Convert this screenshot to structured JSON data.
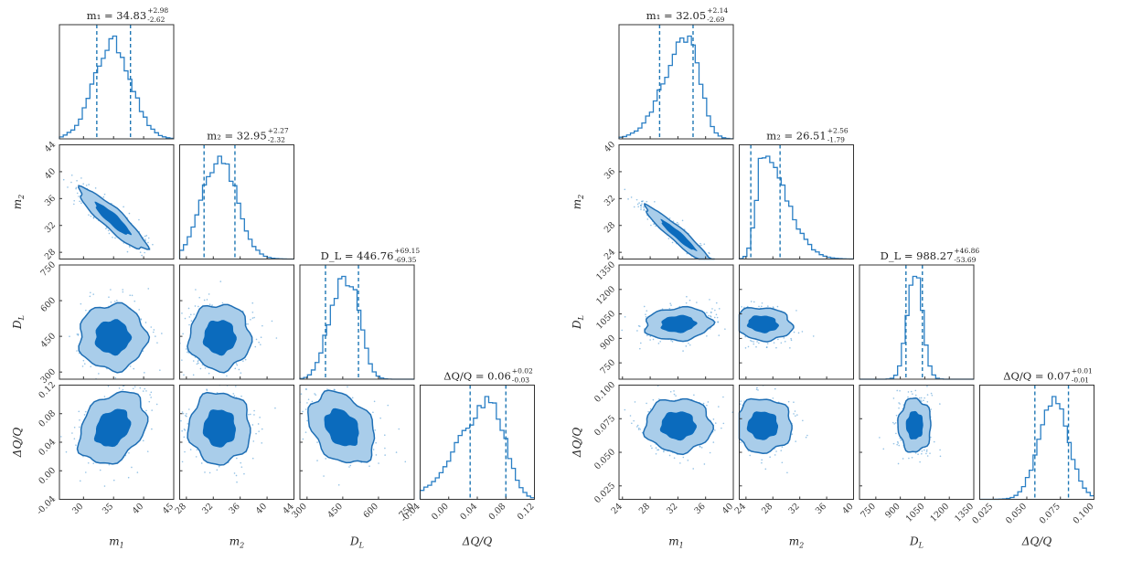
{
  "chart_data": [
    {
      "type": "corner",
      "name": "left",
      "parameters": [
        {
          "key": "m1",
          "label": "m_1",
          "title_value": "34.83",
          "plus": "+2.98",
          "minus": "-2.62",
          "range": [
            26,
            45
          ],
          "ticks": [
            30,
            35,
            40,
            45
          ],
          "median": 34.83,
          "q_low": 32.21,
          "q_high": 37.81,
          "hist_shape": "symmetric"
        },
        {
          "key": "m2",
          "label": "m_2",
          "title_value": "32.95",
          "plus": "+2.27",
          "minus": "-2.32",
          "range": [
            27,
            44
          ],
          "ticks": [
            28,
            32,
            36,
            40,
            44
          ],
          "median": 32.95,
          "q_low": 30.63,
          "q_high": 35.22,
          "hist_shape": "symmetric"
        },
        {
          "key": "DL",
          "label": "D_L",
          "title_value": "446.76",
          "plus": "+69.15",
          "minus": "-69.35",
          "range": [
            270,
            750
          ],
          "ticks": [
            300,
            450,
            600,
            750
          ],
          "median": 446.76,
          "q_low": 377.41,
          "q_high": 515.91,
          "hist_shape": "bimodal"
        },
        {
          "key": "dQ",
          "label": "ΔQ/Q",
          "title_value": "0.06",
          "plus": "+0.02",
          "minus": "-0.03",
          "range": [
            -0.04,
            0.12
          ],
          "ticks": [
            -0.04,
            0.0,
            0.04,
            0.08,
            0.12
          ],
          "median": 0.06,
          "q_low": 0.03,
          "q_high": 0.08,
          "hist_shape": "left-skewed"
        }
      ],
      "ytick_labels": {
        "m2": [
          "28",
          "32",
          "36",
          "40",
          "44"
        ],
        "DL": [
          "300",
          "450",
          "600",
          "750"
        ],
        "dQ": [
          "-0.04",
          "0.00",
          "0.04",
          "0.08",
          "0.12"
        ]
      },
      "xtick_labels": {
        "m1": [
          "30",
          "35",
          "40",
          "45"
        ],
        "m2": [
          "28",
          "32",
          "36",
          "40",
          "44"
        ],
        "DL": [
          "300",
          "450",
          "600",
          "750"
        ],
        "dQ": [
          "-0.04",
          "0.00",
          "0.04",
          "0.08",
          "0.12"
        ]
      },
      "correlations": {
        "m1_m2": -0.9,
        "m1_DL": 0.0,
        "m2_DL": 0.0,
        "m1_dQ": 0.3,
        "m2_dQ": 0.0,
        "DL_dQ": -0.3
      }
    },
    {
      "type": "corner",
      "name": "right",
      "parameters": [
        {
          "key": "m1",
          "label": "m_1",
          "title_value": "32.05",
          "plus": "+2.14",
          "minus": "-2.69",
          "range": [
            23.5,
            40
          ],
          "ticks": [
            24,
            28,
            32,
            36,
            40
          ],
          "median": 32.05,
          "q_low": 29.36,
          "q_high": 34.19,
          "hist_shape": "right-peaked"
        },
        {
          "key": "m2",
          "label": "m_2",
          "title_value": "26.51",
          "plus": "+2.56",
          "minus": "-1.79",
          "range": [
            23,
            40
          ],
          "ticks": [
            24,
            28,
            32,
            36,
            40
          ],
          "median": 26.51,
          "q_low": 24.72,
          "q_high": 29.07,
          "hist_shape": "right-skewed"
        },
        {
          "key": "DL",
          "label": "D_L",
          "title_value": "988.27",
          "plus": "+46.86",
          "minus": "-53.69",
          "range": [
            650,
            1350
          ],
          "ticks": [
            750,
            900,
            1050,
            1200,
            1350
          ],
          "median": 988.27,
          "q_low": 934.58,
          "q_high": 1035.13,
          "hist_shape": "narrow"
        },
        {
          "key": "dQ",
          "label": "ΔQ/Q",
          "title_value": "0.07",
          "plus": "+0.01",
          "minus": "-0.01",
          "range": [
            0.015,
            0.1
          ],
          "ticks": [
            0.025,
            0.05,
            0.075,
            0.1
          ],
          "median": 0.07,
          "q_low": 0.056,
          "q_high": 0.081,
          "hist_shape": "symmetric"
        }
      ],
      "ytick_labels": {
        "m2": [
          "24",
          "28",
          "32",
          "36",
          "40"
        ],
        "DL": [
          "750",
          "900",
          "1050",
          "1200",
          "1350"
        ],
        "dQ": [
          "0.025",
          "0.050",
          "0.075",
          "0.100"
        ]
      },
      "xtick_labels": {
        "m1": [
          "24",
          "28",
          "32",
          "36",
          "40"
        ],
        "m2": [
          "24",
          "28",
          "32",
          "36",
          "40"
        ],
        "DL": [
          "750",
          "900",
          "1050",
          "1200",
          "1350"
        ],
        "dQ": [
          "0.025",
          "0.050",
          "0.075",
          "0.100"
        ]
      },
      "correlations": {
        "m1_m2": -0.95,
        "m1_DL": 0.1,
        "m2_DL": -0.1,
        "m1_dQ": 0.0,
        "m2_dQ": 0.0,
        "DL_dQ": 0.0
      }
    }
  ],
  "titles": {
    "left": {
      "m1": "m₁ = 34.83",
      "m2": "m₂ = 32.95",
      "DL": "D_L = 446.76",
      "dQ": "ΔQ/Q = 0.06"
    },
    "right": {
      "m1": "m₁ = 32.05",
      "m2": "m₂ = 26.51",
      "DL": "D_L = 988.27",
      "dQ": "ΔQ/Q = 0.07"
    }
  },
  "axis_labels": {
    "m1": "m",
    "m1_sub": "1",
    "m2": "m",
    "m2_sub": "2",
    "DL": "D",
    "DL_sub": "L",
    "dQ": "ΔQ/Q"
  },
  "colors": {
    "dark": "#0b6bbd",
    "light": "#a9cdea",
    "line": "#1f6fb5",
    "hist": "#2a7fc5"
  }
}
